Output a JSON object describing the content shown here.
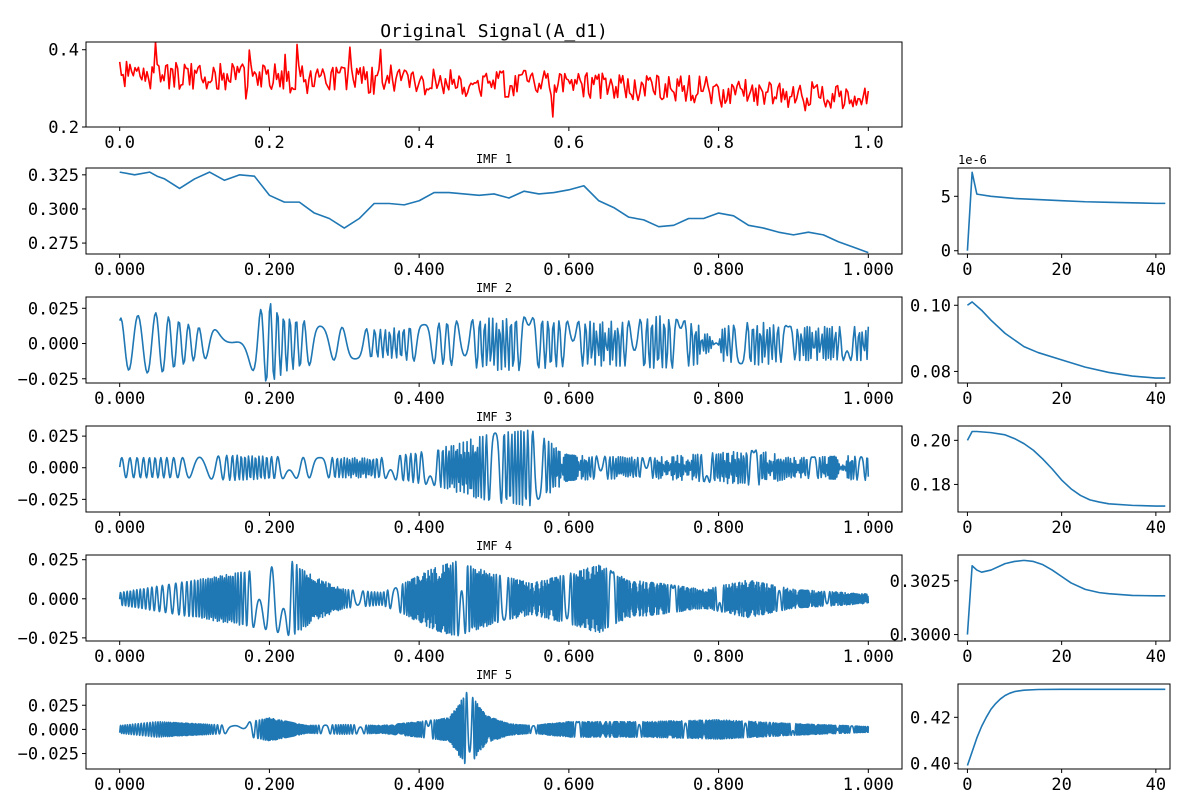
{
  "chart_data": [
    {
      "type": "line",
      "panel": "original",
      "title": "Original Signal(A_d1)",
      "color": "#ff0000",
      "xlim": [
        0.0,
        1.0
      ],
      "ylim": [
        0.2,
        0.42
      ],
      "xticks": [
        0.0,
        0.2,
        0.4,
        0.6,
        0.8,
        1.0
      ],
      "xtick_labels": [
        "0.0",
        "0.2",
        "0.4",
        "0.6",
        "0.8",
        "1.0"
      ],
      "yticks": [
        0.2,
        0.4
      ],
      "ytick_labels": [
        "0.2",
        "0.4"
      ],
      "n_points": 440,
      "trend": [
        [
          0.0,
          0.335
        ],
        [
          0.2,
          0.33
        ],
        [
          0.4,
          0.315
        ],
        [
          0.6,
          0.31
        ],
        [
          0.8,
          0.295
        ],
        [
          1.0,
          0.275
        ]
      ],
      "noise_amplitude": 0.035
    },
    {
      "type": "line",
      "panel": "IMF 1",
      "title": "IMF 1",
      "color": "#1f77b4",
      "xlim": [
        0.0,
        1.0
      ],
      "ylim": [
        0.267,
        0.33
      ],
      "xticks": [
        0.0,
        0.2,
        0.4,
        0.6,
        0.8,
        1.0
      ],
      "xtick_labels": [
        "0.000",
        "0.200",
        "0.400",
        "0.600",
        "0.800",
        "1.000"
      ],
      "yticks": [
        0.275,
        0.3,
        0.325
      ],
      "ytick_labels": [
        "0.275",
        "0.300",
        "0.325"
      ],
      "x": [
        0.0,
        0.02,
        0.04,
        0.05,
        0.06,
        0.08,
        0.1,
        0.12,
        0.14,
        0.16,
        0.18,
        0.2,
        0.22,
        0.24,
        0.26,
        0.28,
        0.3,
        0.32,
        0.34,
        0.36,
        0.38,
        0.4,
        0.42,
        0.44,
        0.46,
        0.48,
        0.5,
        0.52,
        0.54,
        0.56,
        0.58,
        0.6,
        0.62,
        0.64,
        0.66,
        0.68,
        0.7,
        0.72,
        0.74,
        0.76,
        0.78,
        0.8,
        0.82,
        0.84,
        0.86,
        0.88,
        0.9,
        0.92,
        0.94,
        0.96,
        0.98,
        1.0
      ],
      "y": [
        0.327,
        0.325,
        0.327,
        0.324,
        0.322,
        0.315,
        0.322,
        0.327,
        0.321,
        0.325,
        0.324,
        0.31,
        0.305,
        0.305,
        0.297,
        0.293,
        0.286,
        0.293,
        0.304,
        0.304,
        0.303,
        0.306,
        0.312,
        0.312,
        0.311,
        0.31,
        0.311,
        0.308,
        0.313,
        0.311,
        0.312,
        0.314,
        0.317,
        0.306,
        0.301,
        0.294,
        0.292,
        0.287,
        0.288,
        0.293,
        0.293,
        0.297,
        0.295,
        0.288,
        0.286,
        0.283,
        0.281,
        0.283,
        0.281,
        0.276,
        0.272,
        0.268
      ]
    },
    {
      "type": "line",
      "panel": "IMF 1 spectrum",
      "color": "#1f77b4",
      "offset_label": "1e-6",
      "xlim": [
        -2,
        43
      ],
      "ylim": [
        -0.3,
        7.6
      ],
      "xticks": [
        0,
        20,
        40
      ],
      "xtick_labels": [
        "0",
        "20",
        "40"
      ],
      "yticks": [
        0,
        5
      ],
      "ytick_labels": [
        "0",
        "5"
      ],
      "x": [
        0,
        1,
        2,
        5,
        10,
        15,
        20,
        25,
        30,
        35,
        40,
        42
      ],
      "y": [
        0.0,
        7.2,
        5.2,
        5.0,
        4.8,
        4.7,
        4.6,
        4.5,
        4.45,
        4.4,
        4.35,
        4.35
      ]
    },
    {
      "type": "line",
      "panel": "IMF 2",
      "title": "IMF 2",
      "color": "#1f77b4",
      "xlim": [
        0.0,
        1.0
      ],
      "ylim": [
        -0.028,
        0.033
      ],
      "xticks": [
        0.0,
        0.2,
        0.4,
        0.6,
        0.8,
        1.0
      ],
      "xtick_labels": [
        "0.000",
        "0.200",
        "0.400",
        "0.600",
        "0.800",
        "1.000"
      ],
      "yticks": [
        -0.025,
        0.0,
        0.025
      ],
      "ytick_labels": [
        "−0.025",
        "0.000",
        "0.025"
      ],
      "cycles": 50,
      "envelope": [
        [
          0.0,
          0.018
        ],
        [
          0.05,
          0.022
        ],
        [
          0.1,
          0.012
        ],
        [
          0.15,
          0.008
        ],
        [
          0.18,
          0.02
        ],
        [
          0.2,
          0.03
        ],
        [
          0.22,
          0.02
        ],
        [
          0.28,
          0.012
        ],
        [
          0.35,
          0.01
        ],
        [
          0.45,
          0.016
        ],
        [
          0.52,
          0.02
        ],
        [
          0.6,
          0.016
        ],
        [
          0.68,
          0.016
        ],
        [
          0.72,
          0.02
        ],
        [
          0.8,
          0.012
        ],
        [
          0.85,
          0.016
        ],
        [
          0.9,
          0.012
        ],
        [
          1.0,
          0.012
        ]
      ]
    },
    {
      "type": "line",
      "panel": "IMF 2 spectrum",
      "color": "#1f77b4",
      "xlim": [
        -2,
        43
      ],
      "ylim": [
        0.0765,
        0.1025
      ],
      "xticks": [
        0,
        20,
        40
      ],
      "xtick_labels": [
        "0",
        "20",
        "40"
      ],
      "yticks": [
        0.08,
        0.1
      ],
      "ytick_labels": [
        "0.08",
        "0.10"
      ],
      "x": [
        0,
        1,
        3,
        5,
        8,
        10,
        12,
        15,
        20,
        25,
        30,
        35,
        40,
        42
      ],
      "y": [
        0.1,
        0.101,
        0.0985,
        0.0955,
        0.0915,
        0.0895,
        0.0875,
        0.0857,
        0.0835,
        0.0813,
        0.0797,
        0.0786,
        0.078,
        0.078
      ]
    },
    {
      "type": "line",
      "panel": "IMF 3",
      "title": "IMF 3",
      "color": "#1f77b4",
      "xlim": [
        0.0,
        1.0
      ],
      "ylim": [
        -0.035,
        0.033
      ],
      "xticks": [
        0.0,
        0.2,
        0.4,
        0.6,
        0.8,
        1.0
      ],
      "xtick_labels": [
        "0.000",
        "0.200",
        "0.400",
        "0.600",
        "0.800",
        "1.000"
      ],
      "yticks": [
        -0.025,
        0.0,
        0.025
      ],
      "ytick_labels": [
        "−0.025",
        "0.000",
        "0.025"
      ],
      "cycles": 100,
      "envelope": [
        [
          0.0,
          0.008
        ],
        [
          0.1,
          0.008
        ],
        [
          0.15,
          0.01
        ],
        [
          0.25,
          0.008
        ],
        [
          0.35,
          0.008
        ],
        [
          0.42,
          0.014
        ],
        [
          0.5,
          0.028
        ],
        [
          0.55,
          0.03
        ],
        [
          0.6,
          0.01
        ],
        [
          0.7,
          0.008
        ],
        [
          0.85,
          0.014
        ],
        [
          0.9,
          0.008
        ],
        [
          1.0,
          0.01
        ]
      ]
    },
    {
      "type": "line",
      "panel": "IMF 3 spectrum",
      "color": "#1f77b4",
      "xlim": [
        -2,
        43
      ],
      "ylim": [
        0.1675,
        0.2065
      ],
      "xticks": [
        0,
        20,
        40
      ],
      "xtick_labels": [
        "0",
        "20",
        "40"
      ],
      "yticks": [
        0.18,
        0.2
      ],
      "ytick_labels": [
        "0.18",
        "0.20"
      ],
      "x": [
        0,
        1,
        2,
        5,
        8,
        10,
        12,
        14,
        16,
        18,
        20,
        22,
        24,
        26,
        28,
        30,
        35,
        40,
        42
      ],
      "y": [
        0.2,
        0.204,
        0.204,
        0.2035,
        0.2025,
        0.2008,
        0.1985,
        0.1955,
        0.1915,
        0.187,
        0.182,
        0.178,
        0.175,
        0.173,
        0.172,
        0.1712,
        0.1705,
        0.1702,
        0.1702
      ]
    },
    {
      "type": "line",
      "panel": "IMF 4",
      "title": "IMF 4",
      "color": "#1f77b4",
      "xlim": [
        0.0,
        1.0
      ],
      "ylim": [
        -0.027,
        0.028
      ],
      "xticks": [
        0.0,
        0.2,
        0.4,
        0.6,
        0.8,
        1.0
      ],
      "xtick_labels": [
        "0.000",
        "0.200",
        "0.400",
        "0.600",
        "0.800",
        "1.000"
      ],
      "yticks": [
        -0.025,
        0.0,
        0.025
      ],
      "ytick_labels": [
        "−0.025",
        "0.000",
        "0.025"
      ],
      "cycles": 200,
      "envelope": [
        [
          0.0,
          0.004
        ],
        [
          0.05,
          0.008
        ],
        [
          0.1,
          0.012
        ],
        [
          0.15,
          0.016
        ],
        [
          0.2,
          0.02
        ],
        [
          0.23,
          0.024
        ],
        [
          0.26,
          0.014
        ],
        [
          0.3,
          0.006
        ],
        [
          0.35,
          0.004
        ],
        [
          0.38,
          0.01
        ],
        [
          0.42,
          0.02
        ],
        [
          0.45,
          0.024
        ],
        [
          0.5,
          0.016
        ],
        [
          0.55,
          0.01
        ],
        [
          0.6,
          0.016
        ],
        [
          0.64,
          0.022
        ],
        [
          0.68,
          0.012
        ],
        [
          0.72,
          0.01
        ],
        [
          0.78,
          0.006
        ],
        [
          0.84,
          0.012
        ],
        [
          0.9,
          0.006
        ],
        [
          1.0,
          0.003
        ]
      ]
    },
    {
      "type": "line",
      "panel": "IMF 4 spectrum",
      "color": "#1f77b4",
      "xlim": [
        -2,
        43
      ],
      "ylim": [
        0.2997,
        0.3037
      ],
      "xticks": [
        0,
        20,
        40
      ],
      "xtick_labels": [
        "0",
        "20",
        "40"
      ],
      "yticks": [
        0.3,
        0.3025
      ],
      "ytick_labels": [
        "0.3000",
        "0.3025"
      ],
      "x": [
        0,
        1,
        2,
        3,
        5,
        8,
        10,
        12,
        14,
        16,
        18,
        20,
        22,
        25,
        28,
        30,
        35,
        40,
        42
      ],
      "y": [
        0.3,
        0.3032,
        0.303,
        0.3029,
        0.303,
        0.3033,
        0.3034,
        0.30345,
        0.3034,
        0.30325,
        0.303,
        0.3027,
        0.3024,
        0.3021,
        0.30195,
        0.3019,
        0.30182,
        0.3018,
        0.3018
      ]
    },
    {
      "type": "line",
      "panel": "IMF 5",
      "title": "IMF 5",
      "color": "#1f77b4",
      "xlim": [
        0.0,
        1.0
      ],
      "ylim": [
        -0.041,
        0.047
      ],
      "xticks": [
        0.0,
        0.2,
        0.4,
        0.6,
        0.8,
        1.0
      ],
      "xtick_labels": [
        "0.000",
        "0.200",
        "0.400",
        "0.600",
        "0.800",
        "1.000"
      ],
      "yticks": [
        -0.025,
        0.0,
        0.025
      ],
      "ytick_labels": [
        "−0.025",
        "0.000",
        "0.025"
      ],
      "cycles": 330,
      "envelope": [
        [
          0.0,
          0.004
        ],
        [
          0.05,
          0.008
        ],
        [
          0.1,
          0.006
        ],
        [
          0.15,
          0.004
        ],
        [
          0.2,
          0.012
        ],
        [
          0.25,
          0.004
        ],
        [
          0.3,
          0.005
        ],
        [
          0.35,
          0.004
        ],
        [
          0.4,
          0.008
        ],
        [
          0.44,
          0.012
        ],
        [
          0.465,
          0.04
        ],
        [
          0.49,
          0.014
        ],
        [
          0.52,
          0.006
        ],
        [
          0.55,
          0.004
        ],
        [
          0.6,
          0.008
        ],
        [
          0.7,
          0.008
        ],
        [
          0.8,
          0.01
        ],
        [
          0.9,
          0.006
        ],
        [
          1.0,
          0.003
        ]
      ]
    },
    {
      "type": "line",
      "panel": "IMF 5 spectrum",
      "color": "#1f77b4",
      "xlim": [
        -2,
        43
      ],
      "ylim": [
        0.3975,
        0.4345
      ],
      "xticks": [
        0,
        20,
        40
      ],
      "xtick_labels": [
        "0",
        "20",
        "40"
      ],
      "yticks": [
        0.4,
        0.42
      ],
      "ytick_labels": [
        "0.40",
        "0.42"
      ],
      "x": [
        0,
        1,
        2,
        3,
        4,
        5,
        6,
        7,
        8,
        9,
        10,
        12,
        15,
        20,
        30,
        40,
        42
      ],
      "y": [
        0.399,
        0.405,
        0.411,
        0.416,
        0.42,
        0.4235,
        0.426,
        0.428,
        0.4295,
        0.4305,
        0.4312,
        0.4318,
        0.4321,
        0.4322,
        0.4322,
        0.4322,
        0.4322
      ]
    }
  ]
}
